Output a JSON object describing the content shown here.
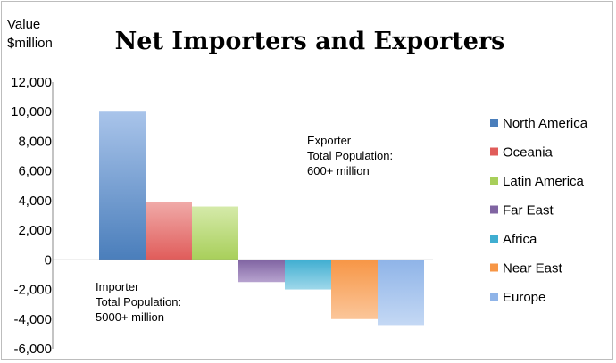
{
  "chart_data": {
    "type": "bar",
    "title": "Net Importers and Exporters",
    "ylabel": [
      "Value",
      "$million"
    ],
    "xlabel": "",
    "ylim": [
      -6000,
      12000
    ],
    "yticks": [
      12000,
      10000,
      8000,
      6000,
      4000,
      2000,
      0,
      -2000,
      -4000,
      -6000
    ],
    "ytick_labels": [
      "12,000",
      "10,000",
      "8,000",
      "6,000",
      "4,000",
      "2,000",
      "0",
      "-2,000",
      "-4,000",
      "-6,000"
    ],
    "grid": false,
    "legend_position": "right",
    "series": [
      {
        "name": "North America",
        "value": 10000,
        "color": "#4a7ebb",
        "light": "#a9c4ea"
      },
      {
        "name": "Oceania",
        "value": 3900,
        "color": "#e05c5a",
        "light": "#f0aaa8"
      },
      {
        "name": "Latin America",
        "value": 3600,
        "color": "#a8cf5a",
        "light": "#d5eaaa"
      },
      {
        "name": "Far East",
        "value": -1500,
        "color": "#8064a2",
        "light": "#b7a3cf"
      },
      {
        "name": "Africa",
        "value": -2000,
        "color": "#40aed1",
        "light": "#9fd8ea"
      },
      {
        "name": "Near East",
        "value": -4000,
        "color": "#f79646",
        "light": "#fbc69a"
      },
      {
        "name": "Europe",
        "value": -4400,
        "color": "#8fb4e8",
        "light": "#c4d8f4"
      }
    ],
    "annotations": [
      {
        "lines": [
          "Exporter",
          "Total Population:",
          "600+ million"
        ]
      },
      {
        "lines": [
          "Importer",
          "Total Population:",
          "5000+ million"
        ]
      }
    ]
  }
}
